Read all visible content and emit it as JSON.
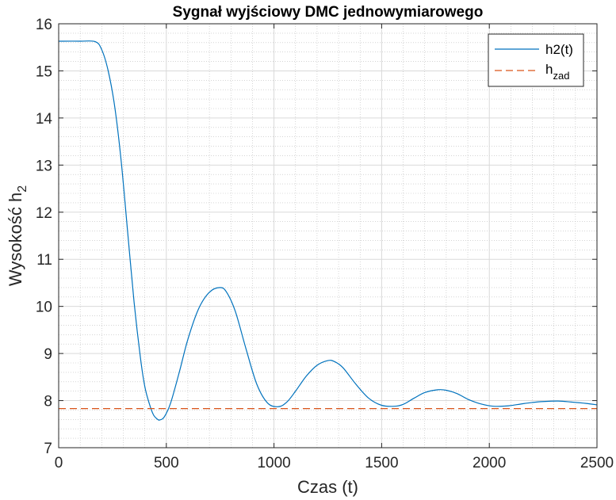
{
  "chart_data": {
    "type": "line",
    "title": "Sygnał wyjściowy DMC jednowymiarowego",
    "xlabel": "Czas (t)",
    "ylabel": {
      "base": "Wysokość h",
      "sub": "2"
    },
    "xlim": [
      0,
      2500
    ],
    "ylim": [
      7,
      16
    ],
    "xticks": [
      0,
      500,
      1000,
      1500,
      2000,
      2500
    ],
    "yticks": [
      7,
      8,
      9,
      10,
      11,
      12,
      13,
      14,
      15,
      16
    ],
    "grid": true,
    "minor_grid": true,
    "legend_position": "top-right",
    "series": [
      {
        "name": "h2(t)",
        "color": "#0072BD",
        "style": "solid",
        "x": [
          0,
          100,
          170,
          200,
          230,
          260,
          290,
          320,
          350,
          380,
          400,
          420,
          440,
          460,
          470,
          490,
          520,
          560,
          600,
          650,
          700,
          750,
          780,
          820,
          870,
          920,
          970,
          1020,
          1060,
          1100,
          1150,
          1200,
          1250,
          1280,
          1320,
          1380,
          1440,
          1500,
          1560,
          1600,
          1650,
          1700,
          1760,
          1800,
          1850,
          1900,
          1960,
          2020,
          2090,
          2150,
          2200,
          2250,
          2320,
          2380,
          2450,
          2500
        ],
        "y": [
          15.63,
          15.63,
          15.62,
          15.45,
          15.0,
          14.25,
          13.1,
          11.6,
          10.1,
          8.9,
          8.3,
          7.95,
          7.7,
          7.6,
          7.59,
          7.65,
          7.95,
          8.6,
          9.3,
          9.95,
          10.3,
          10.4,
          10.3,
          9.9,
          9.1,
          8.35,
          7.95,
          7.87,
          7.97,
          8.2,
          8.52,
          8.75,
          8.85,
          8.83,
          8.7,
          8.35,
          8.05,
          7.9,
          7.88,
          7.92,
          8.05,
          8.17,
          8.23,
          8.22,
          8.15,
          8.03,
          7.93,
          7.88,
          7.89,
          7.93,
          7.96,
          7.98,
          7.99,
          7.97,
          7.94,
          7.91
        ]
      },
      {
        "name": "h_zad",
        "legend": {
          "base": "h",
          "sub": "zad"
        },
        "color": "#D95319",
        "style": "dashed",
        "x": [
          0,
          2500
        ],
        "y": [
          7.83,
          7.83
        ]
      }
    ]
  }
}
